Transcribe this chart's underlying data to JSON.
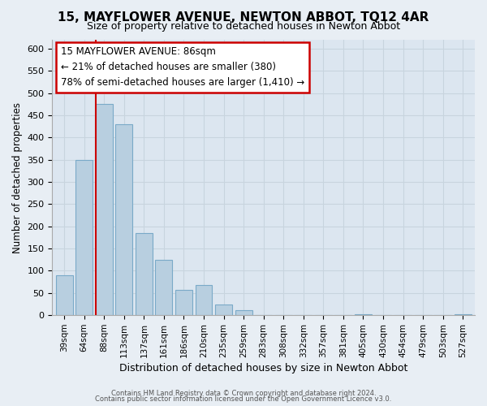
{
  "title": "15, MAYFLOWER AVENUE, NEWTON ABBOT, TQ12 4AR",
  "subtitle": "Size of property relative to detached houses in Newton Abbot",
  "xlabel": "Distribution of detached houses by size in Newton Abbot",
  "ylabel": "Number of detached properties",
  "bar_labels": [
    "39sqm",
    "64sqm",
    "88sqm",
    "113sqm",
    "137sqm",
    "161sqm",
    "186sqm",
    "210sqm",
    "235sqm",
    "259sqm",
    "283sqm",
    "308sqm",
    "332sqm",
    "357sqm",
    "381sqm",
    "405sqm",
    "430sqm",
    "454sqm",
    "479sqm",
    "503sqm",
    "527sqm"
  ],
  "bar_values": [
    90,
    350,
    475,
    430,
    185,
    125,
    57,
    68,
    25,
    12,
    0,
    0,
    0,
    0,
    0,
    3,
    0,
    0,
    0,
    0,
    3
  ],
  "bar_color": "#b8cfe0",
  "bar_edge_color": "#7aaac8",
  "marker_bar_index": 2,
  "marker_line_color": "#cc0000",
  "ylim": [
    0,
    620
  ],
  "yticks": [
    0,
    50,
    100,
    150,
    200,
    250,
    300,
    350,
    400,
    450,
    500,
    550,
    600
  ],
  "annotation_title": "15 MAYFLOWER AVENUE: 86sqm",
  "annotation_line1": "← 21% of detached houses are smaller (380)",
  "annotation_line2": "78% of semi-detached houses are larger (1,410) →",
  "annotation_box_color": "#ffffff",
  "annotation_box_edge": "#cc0000",
  "footer1": "Contains HM Land Registry data © Crown copyright and database right 2024.",
  "footer2": "Contains public sector information licensed under the Open Government Licence v3.0.",
  "bg_color": "#e8eef4",
  "plot_bg_color": "#dce6f0",
  "grid_color": "#c8d4de"
}
